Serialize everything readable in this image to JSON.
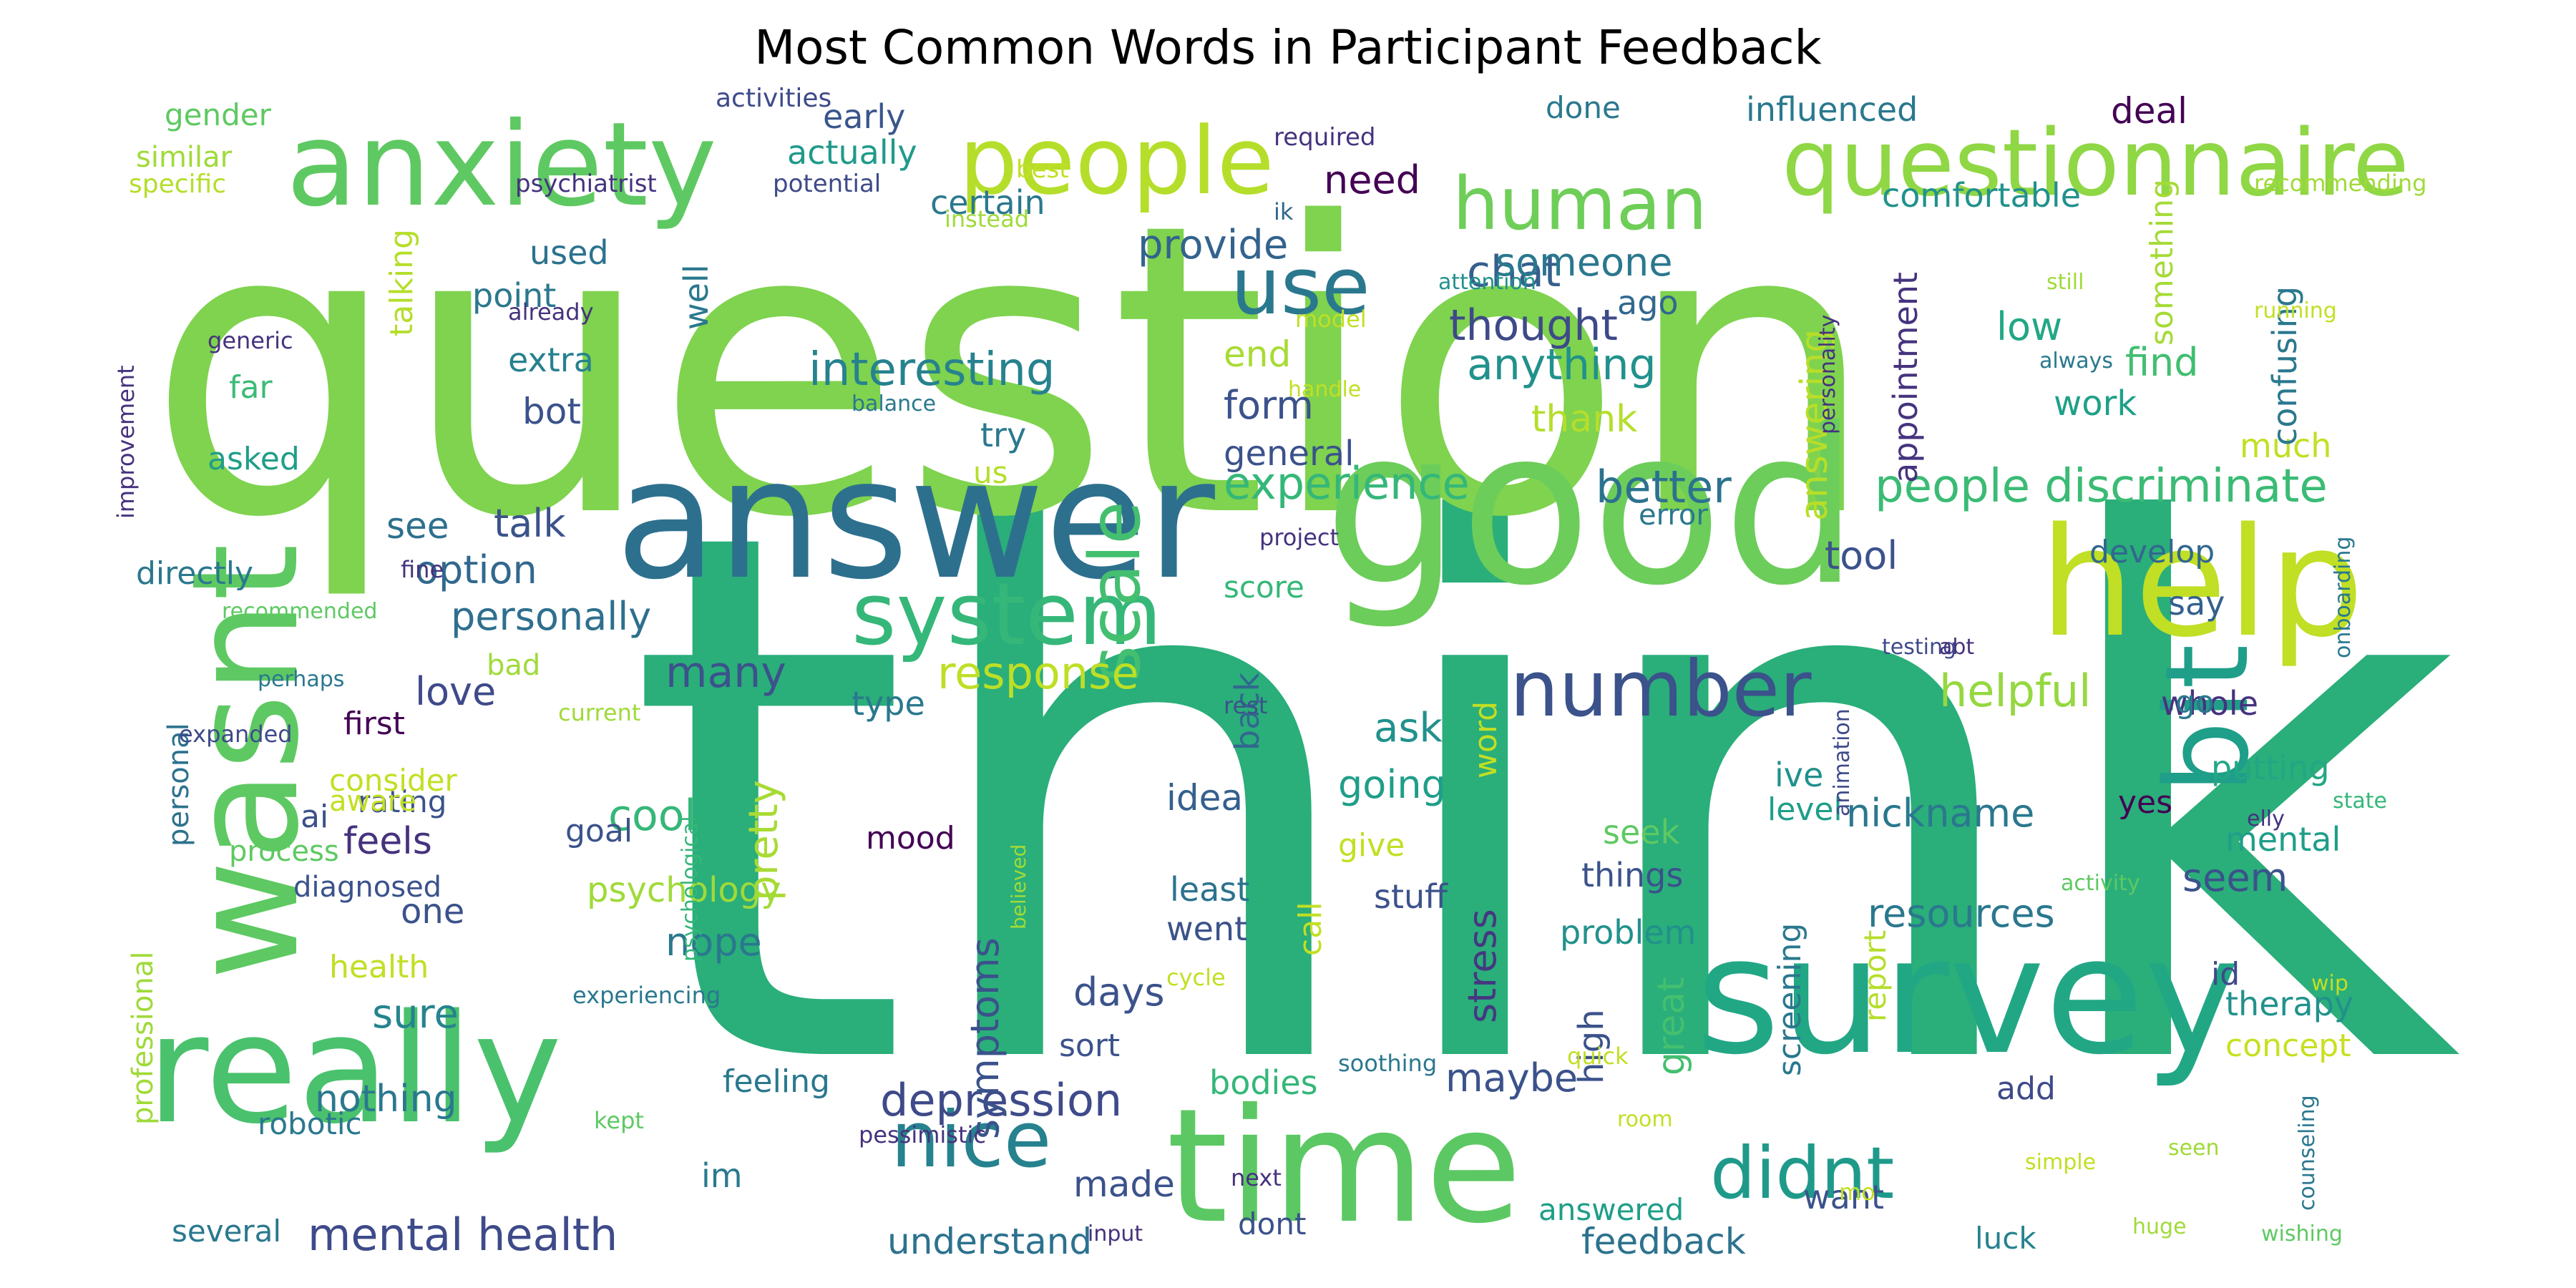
{
  "title": "Most Common Words in Participant Feedback",
  "words": [
    {
      "text": "think",
      "color": "#2aae7a"
    },
    {
      "text": "question",
      "color": "#7fd34e"
    },
    {
      "text": "answer",
      "color": "#2d708e"
    },
    {
      "text": "good",
      "color": "#6ccd5a"
    },
    {
      "text": "survey",
      "color": "#22a785"
    },
    {
      "text": "time",
      "color": "#5cc863"
    },
    {
      "text": "really",
      "color": "#4ac16d"
    },
    {
      "text": "help",
      "color": "#c0df25"
    },
    {
      "text": "anxiety",
      "color": "#5ec962"
    },
    {
      "text": "questionnaire",
      "color": "#8fd744"
    },
    {
      "text": "wasnt",
      "color": "#5ec962"
    },
    {
      "text": "bit",
      "color": "#1f9e89"
    },
    {
      "text": "people",
      "color": "#b5de2b"
    },
    {
      "text": "human",
      "color": "#6ece58"
    },
    {
      "text": "system",
      "color": "#35b779"
    },
    {
      "text": "use",
      "color": "#2a788e"
    },
    {
      "text": "scale",
      "color": "#44bf70"
    },
    {
      "text": "number",
      "color": "#3b528b"
    },
    {
      "text": "nice",
      "color": "#26828e"
    },
    {
      "text": "didnt",
      "color": "#1f9a8a"
    },
    {
      "text": "people discriminate",
      "color": "#3bbb75"
    },
    {
      "text": "mental health",
      "color": "#3e4a89"
    },
    {
      "text": "depression",
      "color": "#3e4a89"
    },
    {
      "text": "interesting",
      "color": "#26828e"
    },
    {
      "text": "experience",
      "color": "#35b779"
    },
    {
      "text": "response",
      "color": "#bddf26"
    },
    {
      "text": "helpful",
      "color": "#95d840"
    },
    {
      "text": "chat",
      "color": "#355f8d"
    },
    {
      "text": "need",
      "color": "#440154"
    },
    {
      "text": "provide",
      "color": "#33638d"
    },
    {
      "text": "someone",
      "color": "#2a788e"
    },
    {
      "text": "thought",
      "color": "#3e4989"
    },
    {
      "text": "anything",
      "color": "#21918c"
    },
    {
      "text": "better",
      "color": "#2c728e"
    },
    {
      "text": "option",
      "color": "#31688e"
    },
    {
      "text": "personally",
      "color": "#2e6f8e"
    },
    {
      "text": "talk",
      "color": "#3b528b"
    },
    {
      "text": "answering",
      "color": "#b8de29"
    },
    {
      "text": "appointment",
      "color": "#46337e"
    },
    {
      "text": "nickname",
      "color": "#2a788e"
    },
    {
      "text": "resources",
      "color": "#2a788e"
    },
    {
      "text": "symptoms",
      "color": "#3b528b"
    },
    {
      "text": "great",
      "color": "#44bf70"
    },
    {
      "text": "stress",
      "color": "#453781"
    },
    {
      "text": "back",
      "color": "#31688e"
    },
    {
      "text": "pretty",
      "color": "#a8db34"
    },
    {
      "text": "ask",
      "color": "#21918c"
    },
    {
      "text": "going",
      "color": "#1f9e89"
    },
    {
      "text": "many",
      "color": "#3b528b"
    },
    {
      "text": "love",
      "color": "#3e4a89"
    },
    {
      "text": "cool",
      "color": "#35b779"
    },
    {
      "text": "nope",
      "color": "#2a788e"
    },
    {
      "text": "psychology",
      "color": "#a0da39"
    },
    {
      "text": "nothing",
      "color": "#2a788e"
    },
    {
      "text": "maybe",
      "color": "#3b528b"
    },
    {
      "text": "feedback",
      "color": "#2c728e"
    },
    {
      "text": "understand",
      "color": "#2c728e"
    },
    {
      "text": "made",
      "color": "#3b528b"
    },
    {
      "text": "feels",
      "color": "#46327e"
    },
    {
      "text": "sure",
      "color": "#25848e"
    },
    {
      "text": "idea",
      "color": "#34608d"
    },
    {
      "text": "days",
      "color": "#3b528b"
    },
    {
      "text": "influenced",
      "color": "#2a788e"
    },
    {
      "text": "deal",
      "color": "#440154"
    },
    {
      "text": "comfortable",
      "color": "#21918c"
    },
    {
      "text": "something",
      "color": "#a5db36"
    },
    {
      "text": "low",
      "color": "#22a785"
    },
    {
      "text": "find",
      "color": "#42be71"
    },
    {
      "text": "work",
      "color": "#1fa088"
    },
    {
      "text": "much",
      "color": "#c2df23"
    },
    {
      "text": "confusing",
      "color": "#2a788e"
    },
    {
      "text": "develop",
      "color": "#31688e"
    },
    {
      "text": "say",
      "color": "#34608d"
    },
    {
      "text": "whole",
      "color": "#46327e"
    },
    {
      "text": "putting",
      "color": "#22a785"
    },
    {
      "text": "yes",
      "color": "#440154"
    },
    {
      "text": "mental",
      "color": "#1f9e89"
    },
    {
      "text": "seem",
      "color": "#3b528b"
    },
    {
      "text": "therapy",
      "color": "#21918c"
    },
    {
      "text": "concept",
      "color": "#c8e020"
    },
    {
      "text": "add",
      "color": "#3e4a89"
    },
    {
      "text": "id",
      "color": "#3e4a89"
    },
    {
      "text": "tool",
      "color": "#3b528b"
    },
    {
      "text": "end",
      "color": "#a8db34"
    },
    {
      "text": "form",
      "color": "#3b528b"
    },
    {
      "text": "thank",
      "color": "#b5de2b"
    },
    {
      "text": "general",
      "color": "#3b528b"
    },
    {
      "text": "ago",
      "color": "#31688e"
    },
    {
      "text": "well",
      "color": "#2a788e"
    },
    {
      "text": "used",
      "color": "#2c728e"
    },
    {
      "text": "point",
      "color": "#2a788e"
    },
    {
      "text": "extra",
      "color": "#26828e"
    },
    {
      "text": "bot",
      "color": "#3b528b"
    },
    {
      "text": "talking",
      "color": "#b5de2b"
    },
    {
      "text": "certain",
      "color": "#2a788e"
    },
    {
      "text": "actually",
      "color": "#1f9a8a"
    },
    {
      "text": "early",
      "color": "#39568c"
    },
    {
      "text": "done",
      "color": "#2a788e"
    },
    {
      "text": "try",
      "color": "#2a788e"
    },
    {
      "text": "us",
      "color": "#b5de2b"
    },
    {
      "text": "see",
      "color": "#2d708e"
    },
    {
      "text": "score",
      "color": "#35b779"
    },
    {
      "text": "type",
      "color": "#2a788e"
    },
    {
      "text": "word",
      "color": "#c2df23"
    },
    {
      "text": "ive",
      "color": "#21918c"
    },
    {
      "text": "level",
      "color": "#1f9e89"
    },
    {
      "text": "seek",
      "color": "#5ec962"
    },
    {
      "text": "things",
      "color": "#3b528b"
    },
    {
      "text": "problem",
      "color": "#21918c"
    },
    {
      "text": "screening",
      "color": "#2a788e"
    },
    {
      "text": "high",
      "color": "#3b528b"
    },
    {
      "text": "report",
      "color": "#b5de2b"
    },
    {
      "text": "went",
      "color": "#3b528b"
    },
    {
      "text": "least",
      "color": "#2c728e"
    },
    {
      "text": "call",
      "color": "#c2df23"
    },
    {
      "text": "give",
      "color": "#c2df23"
    },
    {
      "text": "stuff",
      "color": "#3b528b"
    },
    {
      "text": "mood",
      "color": "#440154"
    },
    {
      "text": "one",
      "color": "#3b528b"
    },
    {
      "text": "bodies",
      "color": "#35b779"
    },
    {
      "text": "feeling",
      "color": "#2a788e"
    },
    {
      "text": "sort",
      "color": "#3b528b"
    },
    {
      "text": "im",
      "color": "#2a788e"
    },
    {
      "text": "want",
      "color": "#3b528b"
    },
    {
      "text": "luck",
      "color": "#26828e"
    },
    {
      "text": "answered",
      "color": "#1f9e89"
    },
    {
      "text": "dont",
      "color": "#3b528b"
    },
    {
      "text": "several",
      "color": "#2a788e"
    },
    {
      "text": "robotic",
      "color": "#2a788e"
    },
    {
      "text": "health",
      "color": "#c2df23"
    },
    {
      "text": "professional",
      "color": "#a0da39"
    },
    {
      "text": "personal",
      "color": "#2c728e"
    },
    {
      "text": "goal",
      "color": "#3b528b"
    },
    {
      "text": "rating",
      "color": "#3b528b"
    },
    {
      "text": "ai",
      "color": "#3b528b"
    },
    {
      "text": "process",
      "color": "#5ec962"
    },
    {
      "text": "diagnosed",
      "color": "#3b528b"
    },
    {
      "text": "first",
      "color": "#440154"
    },
    {
      "text": "consider",
      "color": "#c2df23"
    },
    {
      "text": "aware",
      "color": "#c2df23"
    },
    {
      "text": "directly",
      "color": "#2a788e"
    },
    {
      "text": "asked",
      "color": "#1f9e89"
    },
    {
      "text": "far",
      "color": "#3bbb75"
    },
    {
      "text": "gender",
      "color": "#5ec962"
    },
    {
      "text": "similar",
      "color": "#a0da39"
    },
    {
      "text": "specific",
      "color": "#b5de2b"
    },
    {
      "text": "activities",
      "color": "#3e4a89"
    },
    {
      "text": "psychiatrist",
      "color": "#46327e"
    },
    {
      "text": "potential",
      "color": "#3e4a89"
    },
    {
      "text": "best",
      "color": "#c2df23"
    },
    {
      "text": "required",
      "color": "#46327e"
    },
    {
      "text": "instead",
      "color": "#a0da39"
    },
    {
      "text": "ik",
      "color": "#31688e"
    },
    {
      "text": "already",
      "color": "#46327e"
    },
    {
      "text": "generic",
      "color": "#46327e"
    },
    {
      "text": "improvement",
      "color": "#46327e"
    },
    {
      "text": "balance",
      "color": "#2a788e"
    },
    {
      "text": "handle",
      "color": "#c2df23"
    },
    {
      "text": "model",
      "color": "#c2df23"
    },
    {
      "text": "attention",
      "color": "#21918c"
    },
    {
      "text": "fine",
      "color": "#46327e"
    },
    {
      "text": "bad",
      "color": "#a0da39"
    },
    {
      "text": "project",
      "color": "#46327e"
    },
    {
      "text": "error",
      "color": "#2a788e"
    },
    {
      "text": "recommended",
      "color": "#5ec962"
    },
    {
      "text": "perhaps",
      "color": "#2a788e"
    },
    {
      "text": "expanded",
      "color": "#3e4a89"
    },
    {
      "text": "current",
      "color": "#a0da39"
    },
    {
      "text": "rest",
      "color": "#3b528b"
    },
    {
      "text": "psychological",
      "color": "#35b779"
    },
    {
      "text": "believed",
      "color": "#a0da39"
    },
    {
      "text": "experiencing",
      "color": "#2a788e"
    },
    {
      "text": "cycle",
      "color": "#c2df23"
    },
    {
      "text": "pessimistic",
      "color": "#46327e"
    },
    {
      "text": "kept",
      "color": "#5ec962"
    },
    {
      "text": "next",
      "color": "#46327e"
    },
    {
      "text": "input",
      "color": "#46327e"
    },
    {
      "text": "soothing",
      "color": "#2a788e"
    },
    {
      "text": "quick",
      "color": "#c2df23"
    },
    {
      "text": "room",
      "color": "#c2df23"
    },
    {
      "text": "mo",
      "color": "#c2df23"
    },
    {
      "text": "personality",
      "color": "#46327e"
    },
    {
      "text": "testing",
      "color": "#3e4a89"
    },
    {
      "text": "animation",
      "color": "#3e4a89"
    },
    {
      "text": "abt",
      "color": "#46327e"
    },
    {
      "text": "elly",
      "color": "#46327e"
    },
    {
      "text": "state",
      "color": "#35b779"
    },
    {
      "text": "activity",
      "color": "#5ec962"
    },
    {
      "text": "wip",
      "color": "#c2df23"
    },
    {
      "text": "simple",
      "color": "#c2df23"
    },
    {
      "text": "seen",
      "color": "#a0da39"
    },
    {
      "text": "huge",
      "color": "#a0da39"
    },
    {
      "text": "counseling",
      "color": "#2a788e"
    },
    {
      "text": "wishing",
      "color": "#5ec962"
    },
    {
      "text": "go",
      "color": "#2a788e"
    },
    {
      "text": "still",
      "color": "#a0da39"
    },
    {
      "text": "always",
      "color": "#2a788e"
    },
    {
      "text": "running",
      "color": "#c2df23"
    },
    {
      "text": "recommending",
      "color": "#a0da39"
    },
    {
      "text": "onboarding",
      "color": "#2a788e"
    }
  ]
}
